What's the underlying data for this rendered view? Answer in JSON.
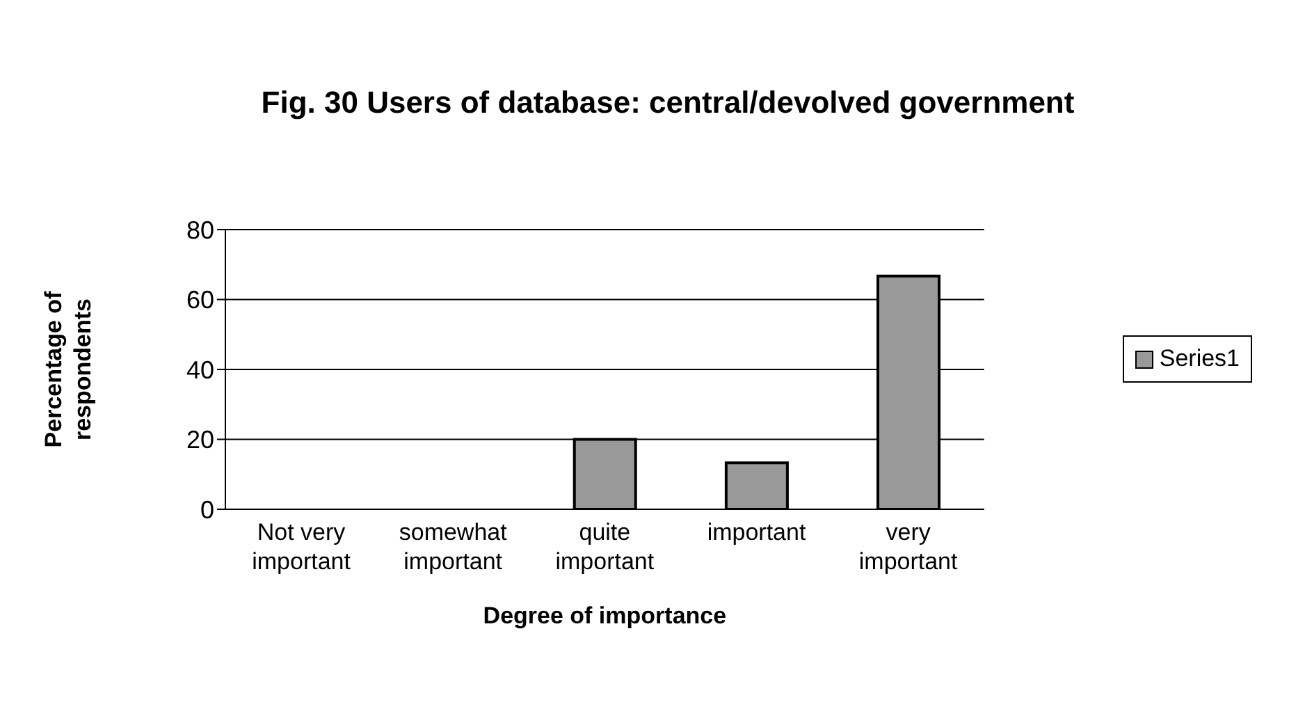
{
  "chart_data": {
    "type": "bar",
    "title": "Fig. 30 Users of database: central/devolved government",
    "xlabel": "Degree of importance",
    "ylabel": "Percentage of respondents",
    "categories": [
      "Not very important",
      "somewhat important",
      "quite important",
      "important",
      "very important"
    ],
    "series": [
      {
        "name": "Series1",
        "color": "#999999",
        "values": [
          0,
          0,
          20,
          13.3,
          66.7
        ]
      }
    ],
    "ylim": [
      0,
      80
    ],
    "yticks": [
      0,
      20,
      40,
      60,
      80
    ],
    "grid": "y",
    "legend": "right"
  }
}
